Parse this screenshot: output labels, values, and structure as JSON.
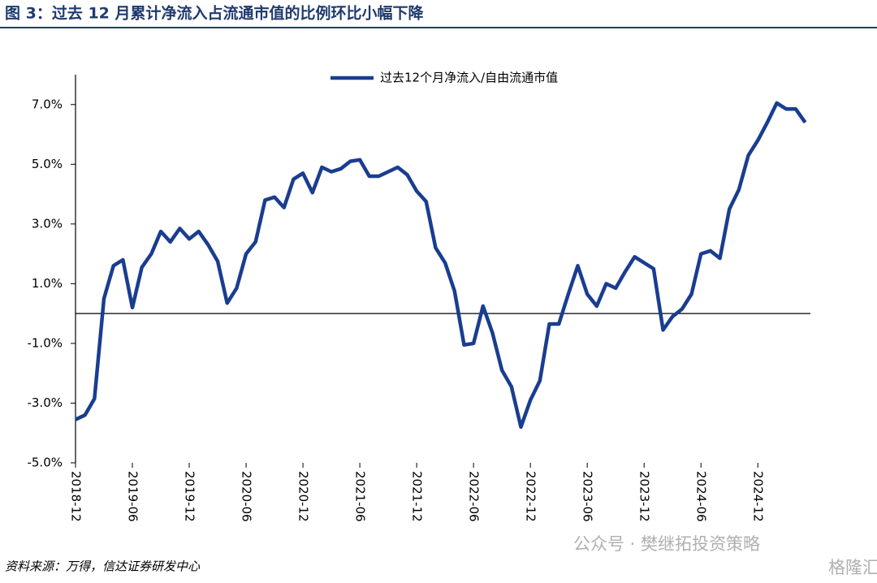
{
  "chart_data": {
    "type": "line",
    "title": "图 3：过去 12 月累计净流入占流通市值的比例环比小幅下降",
    "source": "资料来源：万得，信达证券研发中心",
    "watermark": [
      "公众号 · 樊继拓投资策略",
      "格隆汇"
    ],
    "categories": [
      "2018-12",
      null,
      null,
      null,
      null,
      null,
      "2019-06",
      null,
      null,
      null,
      null,
      null,
      "2019-12",
      null,
      null,
      null,
      null,
      null,
      "2020-06",
      null,
      null,
      null,
      null,
      null,
      "2020-12",
      null,
      null,
      null,
      null,
      null,
      "2021-06",
      null,
      null,
      null,
      null,
      null,
      "2021-12",
      null,
      null,
      null,
      null,
      null,
      "2022-06",
      null,
      null,
      null,
      null,
      null,
      "2022-12",
      null,
      null,
      null,
      null,
      null,
      "2023-06",
      null,
      null,
      null,
      null,
      null,
      "2023-12",
      null,
      null,
      null,
      null,
      null,
      "2024-06",
      null,
      null,
      null,
      null,
      null,
      "2024-12",
      null,
      null,
      null,
      null,
      null
    ],
    "series": [
      {
        "name": "过去12个月净流入/自由流通市值",
        "color": "#1a3d8f",
        "values": [
          -3.55,
          -3.4,
          -2.85,
          0.5,
          1.6,
          1.8,
          0.2,
          1.55,
          2.0,
          2.75,
          2.4,
          2.85,
          2.5,
          2.75,
          2.3,
          1.75,
          0.35,
          0.85,
          2.0,
          2.4,
          3.8,
          3.9,
          3.55,
          4.5,
          4.7,
          4.05,
          4.9,
          4.75,
          4.85,
          5.1,
          5.15,
          4.6,
          4.6,
          4.75,
          4.9,
          4.65,
          4.1,
          3.75,
          2.2,
          1.7,
          0.75,
          -1.05,
          -1.0,
          0.25,
          -0.65,
          -1.9,
          -2.45,
          -3.8,
          -2.9,
          -2.25,
          -0.35,
          -0.35,
          0.65,
          1.6,
          0.65,
          0.25,
          1.0,
          0.85,
          1.4,
          1.9,
          1.7,
          1.5,
          -0.55,
          -0.1,
          0.15,
          0.65,
          2.0,
          2.1,
          1.85,
          3.5,
          4.15,
          5.3,
          5.8,
          6.4,
          7.05,
          6.85,
          6.85,
          6.4
        ]
      }
    ],
    "ylim": [
      -5,
      8
    ],
    "yticks": [
      {
        "value": -5,
        "label": "-5.0%"
      },
      {
        "value": -3,
        "label": "-3.0%"
      },
      {
        "value": -1,
        "label": "-1.0%"
      },
      {
        "value": 1,
        "label": "1.0%"
      },
      {
        "value": 3,
        "label": "3.0%"
      },
      {
        "value": 5,
        "label": "5.0%"
      },
      {
        "value": 7,
        "label": "7.0%"
      }
    ],
    "legend": "top"
  }
}
